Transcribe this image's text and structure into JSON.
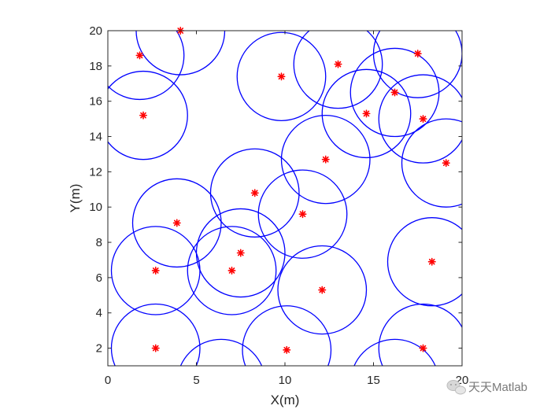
{
  "chart_data": {
    "type": "scatter",
    "title": "",
    "xlabel": "X(m)",
    "ylabel": "Y(m)",
    "xlim": [
      0,
      20
    ],
    "ylim": [
      1,
      20
    ],
    "xticks": [
      0,
      5,
      10,
      15,
      20
    ],
    "yticks": [
      2,
      4,
      6,
      8,
      10,
      12,
      14,
      16,
      18,
      20
    ],
    "grid": false,
    "legend": "none",
    "marker_color": "#ff0000",
    "circle_color": "#0000ff",
    "series": [
      {
        "type": "scatter",
        "marker": "*",
        "points": [
          {
            "x": 4.1,
            "y": 20.0
          },
          {
            "x": 1.8,
            "y": 18.6
          },
          {
            "x": 2.0,
            "y": 15.2
          },
          {
            "x": 9.8,
            "y": 17.4
          },
          {
            "x": 13.0,
            "y": 18.1
          },
          {
            "x": 17.5,
            "y": 18.7
          },
          {
            "x": 16.2,
            "y": 16.5
          },
          {
            "x": 14.6,
            "y": 15.3
          },
          {
            "x": 17.8,
            "y": 15.0
          },
          {
            "x": 19.1,
            "y": 12.5
          },
          {
            "x": 12.3,
            "y": 12.7
          },
          {
            "x": 8.3,
            "y": 10.8
          },
          {
            "x": 11.0,
            "y": 9.6
          },
          {
            "x": 3.9,
            "y": 9.1
          },
          {
            "x": 7.5,
            "y": 7.4
          },
          {
            "x": 7.0,
            "y": 6.4
          },
          {
            "x": 2.7,
            "y": 6.4
          },
          {
            "x": 18.3,
            "y": 6.9
          },
          {
            "x": 12.1,
            "y": 5.3
          },
          {
            "x": 2.7,
            "y": 2.0
          },
          {
            "x": 10.1,
            "y": 1.9
          },
          {
            "x": 17.8,
            "y": 2.0
          }
        ]
      },
      {
        "type": "circle",
        "radius": 2.5,
        "centers": [
          {
            "x": 4.1,
            "y": 20.0
          },
          {
            "x": 1.8,
            "y": 18.6
          },
          {
            "x": 2.0,
            "y": 15.2
          },
          {
            "x": 9.8,
            "y": 17.4
          },
          {
            "x": 13.0,
            "y": 18.1
          },
          {
            "x": 17.5,
            "y": 18.7
          },
          {
            "x": 16.2,
            "y": 16.5
          },
          {
            "x": 14.6,
            "y": 15.3
          },
          {
            "x": 17.8,
            "y": 15.0
          },
          {
            "x": 19.1,
            "y": 12.5
          },
          {
            "x": 12.3,
            "y": 12.7
          },
          {
            "x": 8.3,
            "y": 10.8
          },
          {
            "x": 11.0,
            "y": 9.6
          },
          {
            "x": 3.9,
            "y": 9.1
          },
          {
            "x": 7.5,
            "y": 7.4
          },
          {
            "x": 7.0,
            "y": 6.4
          },
          {
            "x": 2.7,
            "y": 6.4
          },
          {
            "x": 18.3,
            "y": 6.9
          },
          {
            "x": 12.1,
            "y": 5.3
          },
          {
            "x": 2.7,
            "y": 2.0
          },
          {
            "x": 10.1,
            "y": 1.9
          },
          {
            "x": 17.8,
            "y": 2.0
          },
          {
            "x": 6.4,
            "y": 0.0
          },
          {
            "x": 16.2,
            "y": 0.0
          }
        ]
      }
    ]
  },
  "watermark": {
    "text": "天天Matlab",
    "icon": "wechat-icon"
  }
}
